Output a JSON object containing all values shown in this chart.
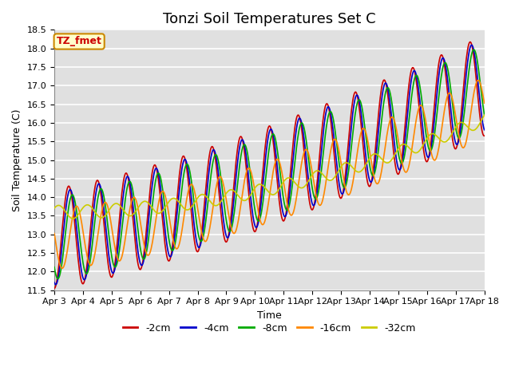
{
  "title": "Tonzi Soil Temperatures Set C",
  "xlabel": "Time",
  "ylabel": "Soil Temperature (C)",
  "ylim": [
    11.5,
    18.5
  ],
  "xlim": [
    0,
    15
  ],
  "xtick_labels": [
    "Apr 3",
    "Apr 4",
    "Apr 5",
    "Apr 6",
    "Apr 7",
    "Apr 8",
    "Apr 9",
    "Apr 10",
    "Apr 11",
    "Apr 12",
    "Apr 13",
    "Apr 14",
    "Apr 15",
    "Apr 16",
    "Apr 17",
    "Apr 18"
  ],
  "legend_labels": [
    "-2cm",
    "-4cm",
    "-8cm",
    "-16cm",
    "-32cm"
  ],
  "line_colors": [
    "#cc0000",
    "#0000cc",
    "#00aa00",
    "#ff8800",
    "#cccc00"
  ],
  "line_widths": [
    1.2,
    1.2,
    1.2,
    1.2,
    1.2
  ],
  "annotation_text": "TZ_fmet",
  "annotation_bg": "#ffffcc",
  "annotation_border": "#cc8800",
  "bg_color": "#e0e0e0",
  "grid_color": "#ffffff",
  "title_fontsize": 13,
  "label_fontsize": 9,
  "tick_fontsize": 8,
  "yticks": [
    11.5,
    12.0,
    12.5,
    13.0,
    13.5,
    14.0,
    14.5,
    15.0,
    15.5,
    16.0,
    16.5,
    17.0,
    17.5,
    18.0,
    18.5
  ]
}
